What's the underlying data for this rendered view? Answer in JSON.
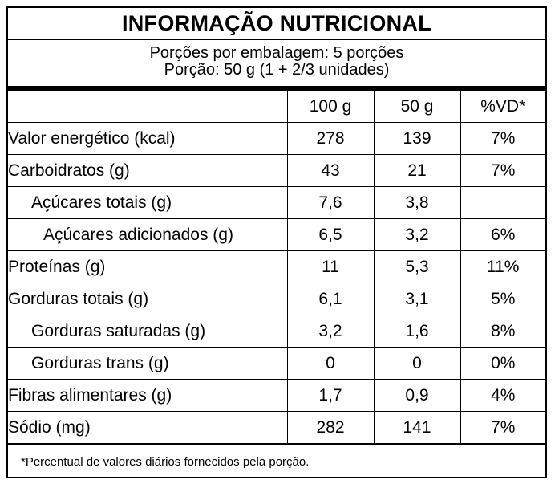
{
  "title": "INFORMAÇÃO NUTRICIONAL",
  "servings_per_package": "Porções por embalagem: 5 porções",
  "serving_size": "Porção: 50 g (1 + 2/3 unidades)",
  "columns": [
    "",
    "100 g",
    "50 g",
    "%VD*"
  ],
  "rows": [
    {
      "name": "Valor energético (kcal)",
      "per100": "278",
      "perServing": "139",
      "vd": "7%"
    },
    {
      "name": "Carboidratos (g)",
      "per100": "43",
      "perServing": "21",
      "vd": "7%"
    },
    {
      "name": "Açúcares totais (g)",
      "per100": "7,6",
      "perServing": "3,8",
      "vd": ""
    },
    {
      "name": "Açúcares adicionados (g)",
      "per100": "6,5",
      "perServing": "3,2",
      "vd": "6%"
    },
    {
      "name": "Proteínas (g)",
      "per100": "11",
      "perServing": "5,3",
      "vd": "11%"
    },
    {
      "name": "Gorduras totais (g)",
      "per100": "6,1",
      "perServing": "3,1",
      "vd": "5%"
    },
    {
      "name": "Gorduras saturadas (g)",
      "per100": "3,2",
      "perServing": "1,6",
      "vd": "8%"
    },
    {
      "name": "Gorduras trans (g)",
      "per100": "0",
      "perServing": "0",
      "vd": "0%"
    },
    {
      "name": "Fibras alimentares (g)",
      "per100": "1,7",
      "perServing": "0,9",
      "vd": "4%"
    },
    {
      "name": "Sódio (mg)",
      "per100": "282",
      "perServing": "141",
      "vd": "7%"
    }
  ],
  "footnote": "*Percentual de valores diários fornecidos pela porção."
}
